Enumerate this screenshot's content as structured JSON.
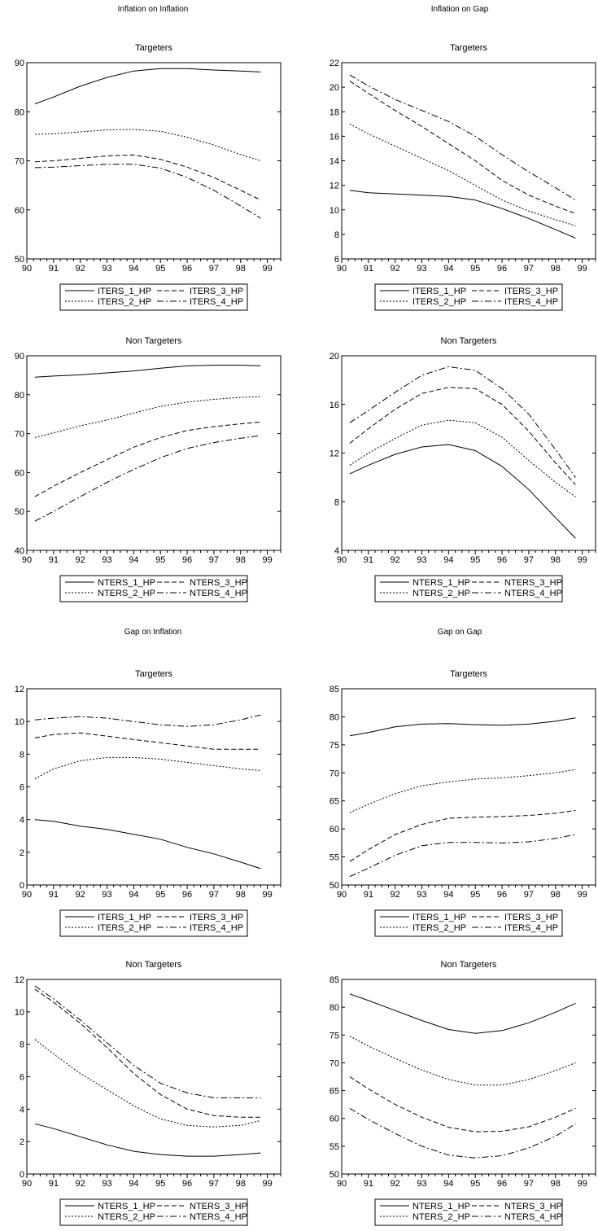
{
  "figure": {
    "sections": [
      {
        "title": "Inflation on Inflation"
      },
      {
        "title": "Inflation on Gap"
      },
      {
        "title": "Gap on Inflation"
      },
      {
        "title": "Gap on Gap"
      }
    ]
  },
  "chart_data": [
    {
      "type": "line",
      "section": "Inflation on Inflation",
      "title": "Targeters",
      "x": [
        90.3,
        91,
        92,
        93,
        94,
        95,
        96,
        97,
        98,
        98.75
      ],
      "xlim": [
        90,
        99.5
      ],
      "xticks": [
        90,
        91,
        92,
        93,
        94,
        95,
        96,
        97,
        98,
        99
      ],
      "ylim": [
        50,
        90
      ],
      "yticks": [
        50,
        60,
        70,
        80,
        90
      ],
      "legend_position": "bottom",
      "series": [
        {
          "name": "ITERS_1_HP",
          "style": "solid",
          "values": [
            81.6,
            83.0,
            85.2,
            87.0,
            88.3,
            88.8,
            88.8,
            88.5,
            88.3,
            88.1
          ]
        },
        {
          "name": "ITERS_2_HP",
          "style": "dotted",
          "values": [
            75.4,
            75.5,
            75.9,
            76.3,
            76.4,
            76.0,
            74.8,
            73.2,
            71.3,
            70.0
          ]
        },
        {
          "name": "ITERS_3_HP",
          "style": "dashed",
          "values": [
            69.8,
            70.0,
            70.5,
            71.0,
            71.2,
            70.3,
            68.7,
            66.6,
            64.0,
            62.0
          ]
        },
        {
          "name": "ITERS_4_HP",
          "style": "dashdot",
          "values": [
            68.6,
            68.7,
            69.0,
            69.3,
            69.3,
            68.5,
            66.6,
            64.0,
            60.8,
            58.3
          ]
        }
      ]
    },
    {
      "type": "line",
      "section": "Inflation on Gap",
      "title": "Targeters",
      "x": [
        90.3,
        91,
        92,
        93,
        94,
        95,
        96,
        97,
        98,
        98.75
      ],
      "xlim": [
        90,
        99.5
      ],
      "xticks": [
        90,
        91,
        92,
        93,
        94,
        95,
        96,
        97,
        98,
        99
      ],
      "ylim": [
        6,
        22
      ],
      "yticks": [
        6,
        8,
        10,
        12,
        14,
        16,
        18,
        20,
        22
      ],
      "legend_position": "bottom",
      "series": [
        {
          "name": "ITERS_1_HP",
          "style": "solid",
          "values": [
            11.6,
            11.4,
            11.3,
            11.2,
            11.1,
            10.8,
            10.1,
            9.3,
            8.4,
            7.7
          ]
        },
        {
          "name": "ITERS_2_HP",
          "style": "dotted",
          "values": [
            17.0,
            16.2,
            15.2,
            14.2,
            13.2,
            12.0,
            10.8,
            9.9,
            9.2,
            8.7
          ]
        },
        {
          "name": "ITERS_3_HP",
          "style": "dashed",
          "values": [
            20.5,
            19.5,
            18.1,
            16.8,
            15.4,
            14.0,
            12.4,
            11.2,
            10.3,
            9.7
          ]
        },
        {
          "name": "ITERS_4_HP",
          "style": "dashdot",
          "values": [
            21.0,
            20.1,
            19.0,
            18.1,
            17.2,
            16.0,
            14.5,
            13.1,
            11.8,
            10.8
          ]
        }
      ]
    },
    {
      "type": "line",
      "section": "Inflation on Inflation",
      "title": "Non Targeters",
      "x": [
        90.3,
        91,
        92,
        93,
        94,
        95,
        96,
        97,
        98,
        98.75
      ],
      "xlim": [
        90,
        99.5
      ],
      "xticks": [
        90,
        91,
        92,
        93,
        94,
        95,
        96,
        97,
        98,
        99
      ],
      "ylim": [
        40,
        90
      ],
      "yticks": [
        40,
        50,
        60,
        70,
        80,
        90
      ],
      "legend_position": "bottom",
      "series": [
        {
          "name": "NTERS_1_HP",
          "style": "solid",
          "values": [
            84.5,
            84.8,
            85.1,
            85.6,
            86.1,
            86.8,
            87.4,
            87.6,
            87.6,
            87.4
          ]
        },
        {
          "name": "NTERS_2_HP",
          "style": "dotted",
          "values": [
            69.0,
            70.2,
            72.0,
            73.5,
            75.3,
            77.0,
            78.1,
            78.8,
            79.3,
            79.5
          ]
        },
        {
          "name": "NTERS_3_HP",
          "style": "dashed",
          "values": [
            53.8,
            56.5,
            60.0,
            63.3,
            66.5,
            69.0,
            70.8,
            71.8,
            72.5,
            73.0
          ]
        },
        {
          "name": "NTERS_4_HP",
          "style": "dashdot",
          "values": [
            47.5,
            50.0,
            53.8,
            57.5,
            60.8,
            63.8,
            66.2,
            67.7,
            68.8,
            69.5
          ]
        }
      ]
    },
    {
      "type": "line",
      "section": "Inflation on Gap",
      "title": "Non Targeters",
      "x": [
        90.3,
        91,
        92,
        93,
        94,
        95,
        96,
        97,
        98,
        98.75
      ],
      "xlim": [
        90,
        99.5
      ],
      "xticks": [
        90,
        91,
        92,
        93,
        94,
        95,
        96,
        97,
        98,
        99
      ],
      "ylim": [
        4,
        20
      ],
      "yticks": [
        4,
        8,
        12,
        16,
        20
      ],
      "legend_position": "bottom",
      "series": [
        {
          "name": "NTERS_1_HP",
          "style": "solid",
          "values": [
            10.3,
            11.0,
            11.9,
            12.5,
            12.7,
            12.2,
            10.9,
            9.0,
            6.7,
            5.0
          ]
        },
        {
          "name": "NTERS_2_HP",
          "style": "dotted",
          "values": [
            11.0,
            12.0,
            13.2,
            14.3,
            14.7,
            14.5,
            13.3,
            11.4,
            9.6,
            8.4
          ]
        },
        {
          "name": "NTERS_3_HP",
          "style": "dashed",
          "values": [
            12.8,
            14.0,
            15.6,
            16.9,
            17.4,
            17.3,
            16.0,
            13.8,
            11.2,
            9.4
          ]
        },
        {
          "name": "NTERS_4_HP",
          "style": "dashdot",
          "values": [
            14.5,
            15.5,
            17.0,
            18.4,
            19.1,
            18.8,
            17.3,
            15.2,
            12.3,
            10.0
          ]
        }
      ]
    },
    {
      "type": "line",
      "section": "Gap on Inflation",
      "title": "Targeters",
      "x": [
        90.3,
        91,
        92,
        93,
        94,
        95,
        96,
        97,
        98,
        98.75
      ],
      "xlim": [
        90,
        99.5
      ],
      "xticks": [
        90,
        91,
        92,
        93,
        94,
        95,
        96,
        97,
        98,
        99
      ],
      "ylim": [
        0,
        12
      ],
      "yticks": [
        0,
        2,
        4,
        6,
        8,
        10,
        12
      ],
      "legend_position": "bottom",
      "series": [
        {
          "name": "ITERS_1_HP",
          "style": "solid",
          "values": [
            4.0,
            3.9,
            3.6,
            3.4,
            3.1,
            2.8,
            2.3,
            1.9,
            1.4,
            1.0
          ]
        },
        {
          "name": "ITERS_2_HP",
          "style": "dotted",
          "values": [
            6.5,
            7.1,
            7.6,
            7.8,
            7.8,
            7.7,
            7.5,
            7.3,
            7.1,
            7.0
          ]
        },
        {
          "name": "ITERS_3_HP",
          "style": "dashed",
          "values": [
            9.0,
            9.2,
            9.3,
            9.1,
            8.9,
            8.7,
            8.5,
            8.3,
            8.3,
            8.3
          ]
        },
        {
          "name": "ITERS_4_HP",
          "style": "dashdot",
          "values": [
            10.1,
            10.2,
            10.3,
            10.2,
            10.0,
            9.8,
            9.7,
            9.8,
            10.1,
            10.4
          ]
        }
      ]
    },
    {
      "type": "line",
      "section": "Gap on Gap",
      "title": "Targeters",
      "x": [
        90.3,
        91,
        92,
        93,
        94,
        95,
        96,
        97,
        98,
        98.75
      ],
      "xlim": [
        90,
        99.5
      ],
      "xticks": [
        90,
        91,
        92,
        93,
        94,
        95,
        96,
        97,
        98,
        99
      ],
      "ylim": [
        50,
        85
      ],
      "yticks": [
        50,
        55,
        60,
        65,
        70,
        75,
        80,
        85
      ],
      "legend_position": "bottom",
      "series": [
        {
          "name": "ITERS_1_HP",
          "style": "solid",
          "values": [
            76.6,
            77.2,
            78.2,
            78.7,
            78.8,
            78.6,
            78.5,
            78.7,
            79.2,
            79.8
          ]
        },
        {
          "name": "ITERS_2_HP",
          "style": "dotted",
          "values": [
            62.9,
            64.4,
            66.3,
            67.7,
            68.4,
            68.9,
            69.1,
            69.5,
            70.0,
            70.6
          ]
        },
        {
          "name": "ITERS_3_HP",
          "style": "dashed",
          "values": [
            54.2,
            56.3,
            59.0,
            60.8,
            61.9,
            62.1,
            62.2,
            62.4,
            62.8,
            63.3
          ]
        },
        {
          "name": "ITERS_4_HP",
          "style": "dashdot",
          "values": [
            51.5,
            53.0,
            55.3,
            57.0,
            57.6,
            57.6,
            57.5,
            57.7,
            58.3,
            59.0
          ]
        }
      ]
    },
    {
      "type": "line",
      "section": "Gap on Inflation",
      "title": "Non Targeters",
      "x": [
        90.3,
        91,
        92,
        93,
        94,
        95,
        96,
        97,
        98,
        98.75
      ],
      "xlim": [
        90,
        99.5
      ],
      "xticks": [
        90,
        91,
        92,
        93,
        94,
        95,
        96,
        97,
        98,
        99
      ],
      "ylim": [
        0,
        12
      ],
      "yticks": [
        0,
        2,
        4,
        6,
        8,
        10,
        12
      ],
      "legend_position": "bottom",
      "series": [
        {
          "name": "NTERS_1_HP",
          "style": "solid",
          "values": [
            3.1,
            2.8,
            2.3,
            1.8,
            1.4,
            1.2,
            1.1,
            1.1,
            1.2,
            1.3
          ]
        },
        {
          "name": "NTERS_2_HP",
          "style": "dotted",
          "values": [
            8.3,
            7.4,
            6.2,
            5.2,
            4.2,
            3.4,
            3.0,
            2.9,
            3.0,
            3.3
          ]
        },
        {
          "name": "NTERS_3_HP",
          "style": "dashed",
          "values": [
            11.4,
            10.6,
            9.3,
            7.8,
            6.2,
            4.9,
            4.0,
            3.6,
            3.5,
            3.5
          ]
        },
        {
          "name": "NTERS_4_HP",
          "style": "dashdot",
          "values": [
            11.6,
            10.8,
            9.5,
            8.1,
            6.7,
            5.6,
            5.0,
            4.7,
            4.7,
            4.7
          ]
        }
      ]
    },
    {
      "type": "line",
      "section": "Gap on Gap",
      "title": "Non Targeters",
      "x": [
        90.3,
        91,
        92,
        93,
        94,
        95,
        96,
        97,
        98,
        98.75
      ],
      "xlim": [
        90,
        99.5
      ],
      "xticks": [
        90,
        91,
        92,
        93,
        94,
        95,
        96,
        97,
        98,
        99
      ],
      "ylim": [
        50,
        85
      ],
      "yticks": [
        50,
        55,
        60,
        65,
        70,
        75,
        80,
        85
      ],
      "legend_position": "bottom",
      "series": [
        {
          "name": "NTERS_1_HP",
          "style": "solid",
          "values": [
            82.4,
            81.2,
            79.4,
            77.6,
            76.0,
            75.3,
            75.8,
            77.2,
            79.1,
            80.7
          ]
        },
        {
          "name": "NTERS_2_HP",
          "style": "dotted",
          "values": [
            74.8,
            73.0,
            70.8,
            68.7,
            67.0,
            66.0,
            66.0,
            67.0,
            68.6,
            70.0
          ]
        },
        {
          "name": "NTERS_3_HP",
          "style": "dashed",
          "values": [
            67.5,
            65.3,
            62.5,
            60.2,
            58.4,
            57.6,
            57.7,
            58.5,
            60.2,
            61.8
          ]
        },
        {
          "name": "NTERS_4_HP",
          "style": "dashdot",
          "values": [
            61.8,
            59.8,
            57.3,
            55.0,
            53.4,
            52.9,
            53.3,
            54.7,
            56.8,
            59.0
          ]
        }
      ]
    }
  ]
}
